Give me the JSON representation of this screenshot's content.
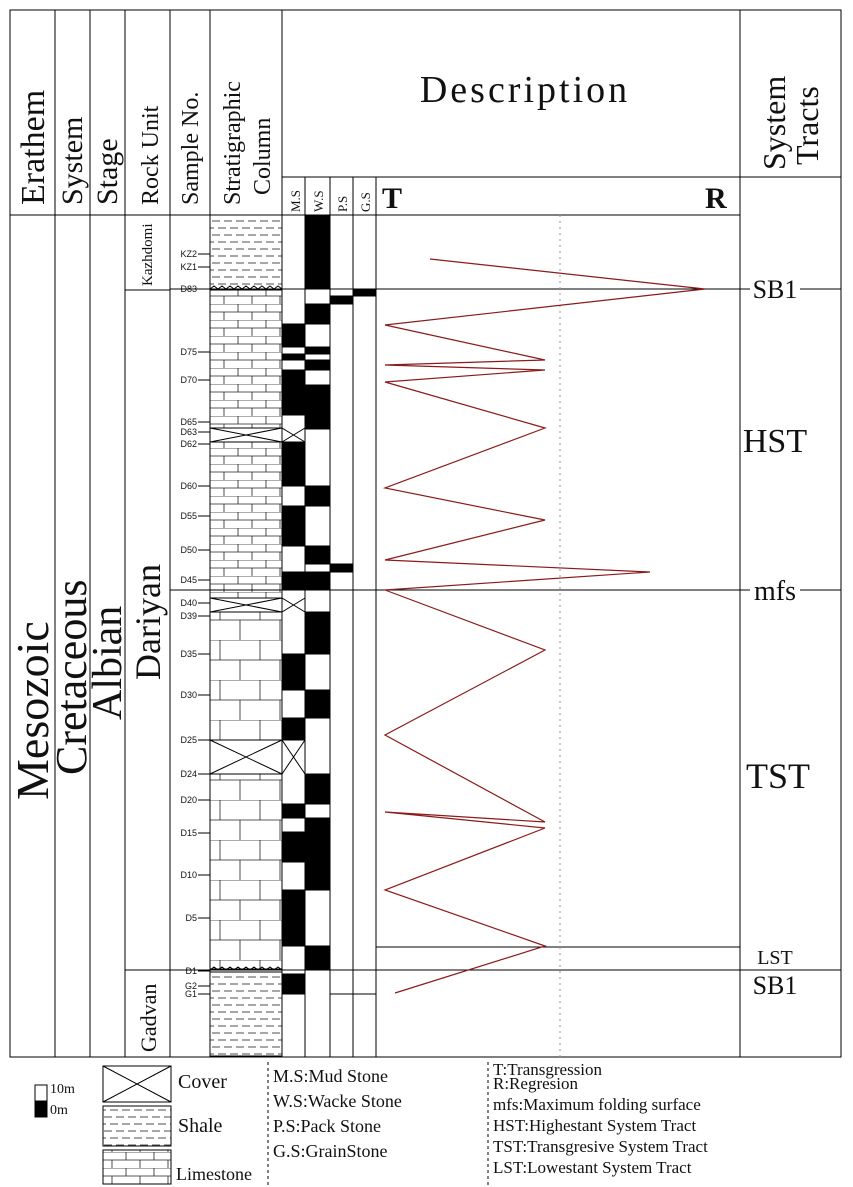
{
  "headers": {
    "erathem": "Erathem",
    "system": "System",
    "stage": "Stage",
    "rock_unit": "Rock Unit",
    "sample_no": "Sample No.",
    "strat_column_line1": "Stratigraphic",
    "strat_column_line2": "Column",
    "description": "Description",
    "system_tracts_line1": "System",
    "system_tracts_line2": "Tracts",
    "ms": "M.S",
    "ws": "W.S",
    "ps": "P.S",
    "gs": "G.S",
    "t": "T",
    "r": "R"
  },
  "units": {
    "erathem": "Mesozoic",
    "system": "Cretaceous",
    "stage": "Albian",
    "rock_units": [
      "Kazhdomi",
      "Dariyan",
      "Gadvan"
    ]
  },
  "sample_labels": [
    "KZ2",
    "KZ1",
    "D83",
    "D75",
    "D70",
    "D65",
    "D63",
    "D62",
    "D60",
    "D55",
    "D50",
    "D45",
    "D40",
    "D39",
    "D35",
    "D30",
    "D25",
    "D24",
    "D20",
    "D15",
    "D10",
    "D5",
    "D1",
    "G2",
    "G1"
  ],
  "systems_tracts": [
    "SB1",
    "HST",
    "mfs",
    "TST",
    "LST",
    "SB1"
  ],
  "sea_level_curve": {
    "axis_left": "T",
    "axis_right": "R",
    "color": "#8b1a1a"
  },
  "legend": {
    "scale_top": "10m",
    "scale_bottom": "0m",
    "lithology": [
      "Cover",
      "Shale",
      "Limestone"
    ],
    "texture": [
      "M.S:Mud Stone",
      "W.S:Wacke Stone",
      "P.S:Pack Stone",
      "G.S:GrainStone"
    ],
    "abbreviations": [
      "T:Transgression",
      "R:Regresion",
      "mfs:Maximum folding surface",
      "HST:Highestant System Tract",
      "TST:Transgresive System Tract",
      "LST:Lowestant System Tract"
    ]
  }
}
